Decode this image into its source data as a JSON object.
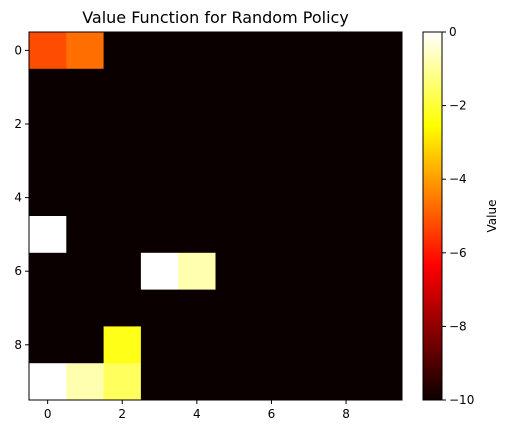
{
  "chart_data": {
    "type": "heatmap",
    "title": "Value Function for Random Policy",
    "xlabel": "",
    "ylabel": "",
    "colormap": "hot",
    "vmin": -10,
    "vmax": 0,
    "colorbar_label": "Value",
    "colorbar_ticks": [
      0,
      -2,
      -4,
      -6,
      -8,
      -10
    ],
    "x_ticks": [
      0,
      2,
      4,
      6,
      8
    ],
    "y_ticks": [
      0,
      2,
      4,
      6,
      8
    ],
    "grid": false,
    "values": [
      [
        -5.2,
        -4.7,
        -10,
        -10,
        -10,
        -10,
        -10,
        -10,
        -10,
        -10
      ],
      [
        -10,
        -10,
        -10,
        -10,
        -10,
        -10,
        -10,
        -10,
        -10,
        -10
      ],
      [
        -10,
        -10,
        -10,
        -10,
        -10,
        -10,
        -10,
        -10,
        -10,
        -10
      ],
      [
        -10,
        -10,
        -10,
        -10,
        -10,
        -10,
        -10,
        -10,
        -10,
        -10
      ],
      [
        -10,
        -10,
        -10,
        -10,
        -10,
        -10,
        -10,
        -10,
        -10,
        -10
      ],
      [
        0,
        -10,
        -10,
        -10,
        -10,
        -10,
        -10,
        -10,
        -10,
        -10
      ],
      [
        -10,
        -10,
        -10,
        0,
        -0.8,
        -10,
        -10,
        -10,
        -10,
        -10
      ],
      [
        -10,
        -10,
        -10,
        -10,
        -10,
        -10,
        -10,
        -10,
        -10,
        -10
      ],
      [
        -10,
        -10,
        -2.3,
        -10,
        -10,
        -10,
        -10,
        -10,
        -10,
        -10
      ],
      [
        0,
        -0.8,
        -1.6,
        -10,
        -10,
        -10,
        -10,
        -10,
        -10,
        -10
      ]
    ]
  }
}
